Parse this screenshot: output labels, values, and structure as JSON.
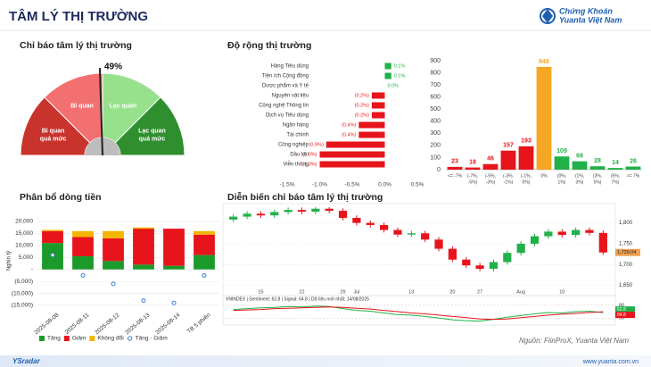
{
  "header": {
    "title": "TÂM LÝ THỊ TRƯỜNG",
    "logo_line1": "Chứng Khoán",
    "logo_line2": "Yuanta Việt Nam"
  },
  "footer": {
    "source": "Nguồn: FiinProX, Yuanta Việt Nam",
    "brand": "YSradar",
    "website": "www.yuanta.com.vn"
  },
  "chart_data": [
    {
      "type": "gauge",
      "title": "Chỉ báo tâm lý thị trường",
      "value": 49,
      "value_label": "49%",
      "lim": [
        0,
        100
      ],
      "segments": [
        [
          "Bi quan",
          "quá mức"
        ],
        [
          "Bi quan"
        ],
        [
          "Lạc quan"
        ],
        [
          "Lạc quan",
          "quá mức"
        ]
      ],
      "colors": [
        "#c8332b",
        "#f27070",
        "#97e08c",
        "#2f8f2e"
      ]
    },
    {
      "type": "hbar",
      "title": "Độ rộng thị trường",
      "categories": [
        "Hàng Tiêu dùng",
        "Tiện ích Cộng đồng",
        "Dược phẩm và Y tế",
        "Nguyên vật liệu",
        "Công nghệ Thông tin",
        "Dịch vụ Tiêu dùng",
        "Ngân hàng",
        "Tài chính",
        "Công nghiệp",
        "Dầu khí",
        "Viễn thông"
      ],
      "values": [
        0.1,
        0.1,
        0.0,
        -0.2,
        -0.2,
        -0.2,
        -0.4,
        -0.4,
        -0.9,
        -1.0,
        -1.0
      ],
      "value_labels": [
        "0.1%",
        "0.1%",
        "0.0%",
        "(0.2%)",
        "(0.2%)",
        "(0.2%)",
        "(0.4%)",
        "(0.4%)",
        "(0.9%)",
        "(1.0%)",
        "(1.0%)"
      ],
      "xlim": [
        -1.5,
        0.5
      ],
      "xticks": [
        {
          "value": -1.5,
          "label": "-1.5%"
        },
        {
          "value": -1.0,
          "label": "-1.0%"
        },
        {
          "value": -0.5,
          "label": "-0.5%"
        },
        {
          "value": 0,
          "label": "0.0%"
        },
        {
          "value": 0.5,
          "label": "0.5%"
        }
      ],
      "color_positive": "#22b04a",
      "color_negative": "#e8141b"
    },
    {
      "type": "bar",
      "categories": [
        [
          "<= -7%"
        ],
        [
          "(-7%,",
          "-5%)"
        ],
        [
          "(-5%,",
          "-3%)"
        ],
        [
          "(-3%,",
          "-1%)"
        ],
        [
          "(-1%,",
          "0%)"
        ],
        [
          "0%"
        ],
        [
          "(0%,",
          "1%)"
        ],
        [
          "(1%,",
          "3%)"
        ],
        [
          "(3%,",
          "5%)"
        ],
        [
          "(5%,",
          "7%)"
        ],
        [
          ">= 7%"
        ]
      ],
      "values": [
        23,
        18,
        46,
        157,
        193,
        849,
        109,
        69,
        28,
        14,
        26
      ],
      "colors": [
        "#e8141b",
        "#e8141b",
        "#e8141b",
        "#e8141b",
        "#e8141b",
        "#f5a623",
        "#22b04a",
        "#22b04a",
        "#22b04a",
        "#22b04a",
        "#22b04a"
      ],
      "ylim": [
        0,
        900
      ],
      "yticks": [
        0,
        100,
        200,
        300,
        400,
        500,
        600,
        700,
        800,
        900
      ]
    },
    {
      "type": "stacked_bar",
      "title": "Phân bổ dòng tiền",
      "y_label": "Nghìn tỷ",
      "categories": [
        "2025-08-08",
        "2025-08-11",
        "2025-08-12",
        "2025-08-13",
        "2025-08-14",
        "TB 5 phiên"
      ],
      "series": [
        {
          "name": "Tăng",
          "color": "#1a9a2a",
          "values": [
            11000,
            5500,
            3500,
            2000,
            1500,
            6000
          ]
        },
        {
          "name": "Giảm",
          "color": "#e8141b",
          "values": [
            5000,
            8000,
            9500,
            15000,
            15500,
            8500
          ]
        },
        {
          "name": "Không đổi",
          "color": "#f5b400",
          "values": [
            500,
            2500,
            3000,
            500,
            0,
            1500
          ]
        },
        {
          "name": "Tăng - Giảm",
          "color": "#3d7fd6",
          "kind": "point",
          "values": [
            6000,
            -2500,
            -6000,
            -13000,
            -14000,
            -2500
          ]
        }
      ],
      "ylim": [
        -16500,
        21500
      ],
      "yticks": [
        {
          "value": -15000,
          "label": "(15,000)"
        },
        {
          "value": -10000,
          "label": "(10,000)"
        },
        {
          "value": -5000,
          "label": "(5,000)"
        },
        {
          "value": 0,
          "label": "-"
        },
        {
          "value": 5000,
          "label": "5,000"
        },
        {
          "value": 10000,
          "label": "10,000"
        },
        {
          "value": 15000,
          "label": "15,000"
        },
        {
          "value": 20000,
          "label": "20,000"
        }
      ]
    },
    {
      "type": "candlestick",
      "title": "Diễn biến chỉ báo tâm lý thị trường",
      "categories": [
        null,
        null,
        "15",
        null,
        null,
        "22",
        null,
        null,
        "29",
        "Jul",
        null,
        null,
        null,
        "13",
        null,
        null,
        "20",
        null,
        "27",
        null,
        null,
        "Aug",
        null,
        null,
        "10",
        null,
        null,
        null
      ],
      "open": [
        1808,
        1815,
        1822,
        1818,
        1826,
        1831,
        1827,
        1834,
        1829,
        1812,
        1800,
        1795,
        1783,
        1772,
        1775,
        1760,
        1738,
        1712,
        1698,
        1690,
        1706,
        1728,
        1750,
        1768,
        1779,
        1771,
        1783,
        1776
      ],
      "high": [
        1821,
        1828,
        1828,
        1832,
        1837,
        1837,
        1838,
        1838,
        1835,
        1818,
        1806,
        1801,
        1789,
        1781,
        1781,
        1766,
        1744,
        1718,
        1704,
        1712,
        1734,
        1756,
        1774,
        1785,
        1785,
        1789,
        1789,
        1782
      ],
      "low": [
        1802,
        1809,
        1812,
        1812,
        1820,
        1821,
        1821,
        1823,
        1806,
        1794,
        1789,
        1777,
        1766,
        1766,
        1754,
        1732,
        1706,
        1692,
        1684,
        1684,
        1700,
        1722,
        1744,
        1762,
        1765,
        1765,
        1770,
        1723
      ],
      "close": [
        1815,
        1822,
        1818,
        1826,
        1831,
        1827,
        1834,
        1829,
        1812,
        1800,
        1795,
        1783,
        1772,
        1775,
        1760,
        1738,
        1712,
        1698,
        1690,
        1706,
        1728,
        1750,
        1768,
        1779,
        1771,
        1783,
        1776,
        1729
      ],
      "up_color": "#22b04a",
      "down_color": "#e8141b",
      "ylim": [
        1645,
        1842
      ],
      "yticks": [
        {
          "value": 1800,
          "label": "1,800"
        },
        {
          "value": 1750,
          "label": "1,750"
        },
        {
          "value": 1700,
          "label": "1,700"
        },
        {
          "value": 1650,
          "label": "1,650"
        }
      ],
      "last_value": 1729.04,
      "last_value_label": "1,729.04",
      "indicator_header": "VNINDEX | Sentiment: 62.8 | Signal: 64.8 | Dữ liệu mới nhất: 14/08/2025",
      "indicator_series": [
        {
          "name": "Sentiment",
          "color": "#22b04a",
          "values": [
            70,
            72,
            74,
            75,
            77,
            76,
            78,
            77,
            72,
            68,
            66,
            62,
            58,
            57,
            54,
            50,
            46,
            44,
            43,
            47,
            52,
            56,
            60,
            63,
            62,
            65,
            66,
            62.8
          ]
        },
        {
          "name": "Signal",
          "color": "#e8141b",
          "values": [
            68,
            69,
            70,
            72,
            73,
            74,
            75,
            76,
            75,
            73,
            71,
            68,
            65,
            62,
            60,
            57,
            54,
            51,
            48,
            47,
            48,
            51,
            54,
            57,
            59,
            61,
            63,
            64.8
          ]
        }
      ],
      "indicator_ylim": [
        38,
        88
      ],
      "indicator_yticks": [
        50,
        80
      ]
    }
  ]
}
